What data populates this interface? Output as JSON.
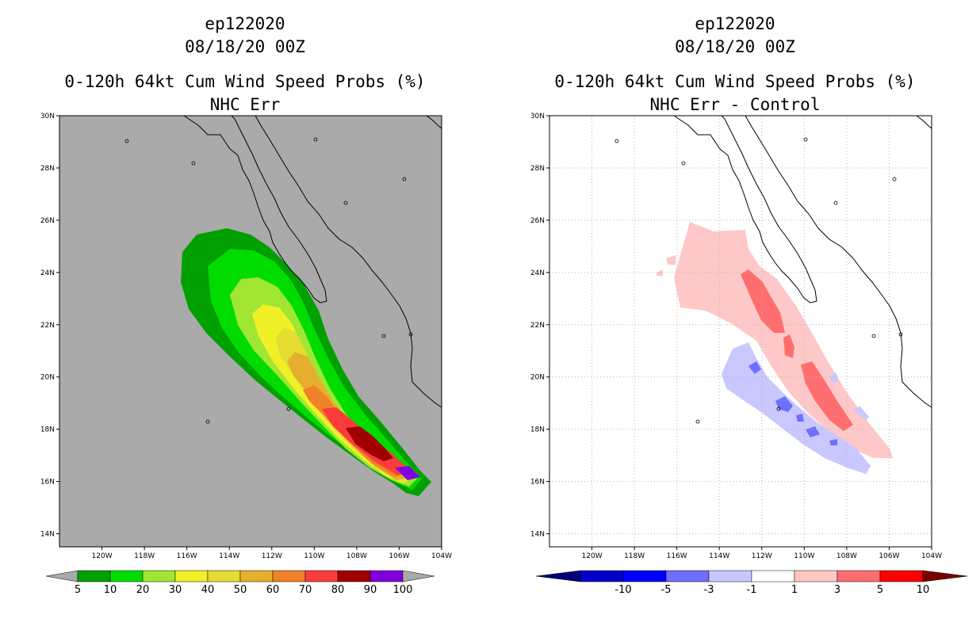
{
  "panels": [
    {
      "line1": "ep122020",
      "line2": "08/18/20 00Z",
      "line3": "0-120h 64kt Cum Wind Speed Probs (%)",
      "line4": "NHC Err",
      "background_color": "#aaaaaa",
      "gridlines": false,
      "colorbar": {
        "labels": [
          "5",
          "10",
          "20",
          "30",
          "40",
          "50",
          "60",
          "70",
          "80",
          "90",
          "100"
        ],
        "colors": [
          "#00a000",
          "#00dc00",
          "#a0e632",
          "#f0f028",
          "#e6dc32",
          "#e6af2d",
          "#f08228",
          "#fa3c3c",
          "#a00000",
          "#8200dc"
        ],
        "end_arrow_color": "#aaaaaa"
      }
    },
    {
      "line1": "ep122020",
      "line2": "08/18/20 00Z",
      "line3": "0-120h 64kt Cum Wind Speed Probs (%)",
      "line4": "NHC Err - Control",
      "background_color": "#ffffff",
      "gridlines": true,
      "colorbar": {
        "labels": [
          "-10",
          "-5",
          "-3",
          "-1",
          "1",
          "3",
          "5",
          "10"
        ],
        "colors": [
          "#0000c8",
          "#0000ff",
          "#6e6eff",
          "#c8c8ff",
          "#ffffff",
          "#ffc8c8",
          "#ff6e6e",
          "#ff0000"
        ],
        "left_arrow_color": "#00007a",
        "right_arrow_color": "#7a0000"
      }
    }
  ],
  "axes": {
    "lat_labels": [
      "30N",
      "28N",
      "26N",
      "24N",
      "22N",
      "20N",
      "18N",
      "16N",
      "14N"
    ],
    "lon_labels": [
      "120W",
      "118W",
      "116W",
      "114W",
      "112W",
      "110W",
      "108W",
      "106W",
      "104W"
    ]
  }
}
